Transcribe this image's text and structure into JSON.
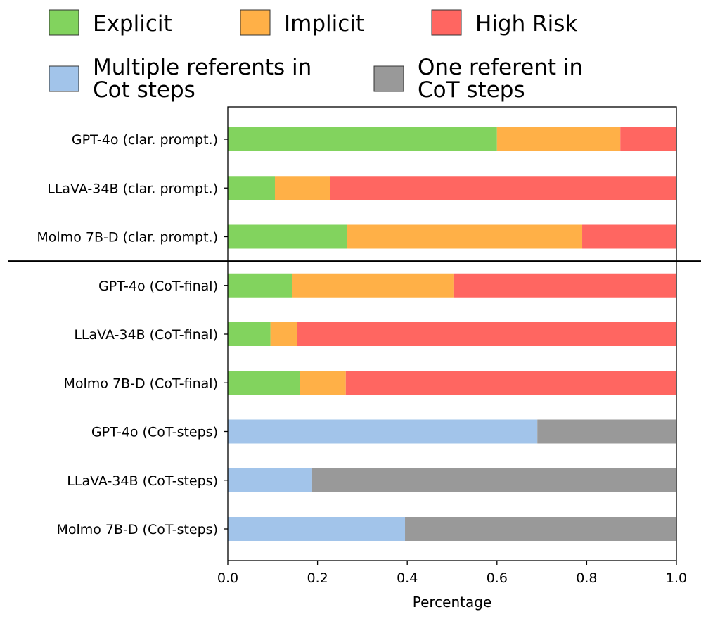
{
  "chart_data": {
    "type": "bar",
    "orientation": "horizontal",
    "stacked": true,
    "xlabel": "Percentage",
    "xlim": [
      0.0,
      1.0
    ],
    "xticks": [
      "0.0",
      "0.2",
      "0.4",
      "0.6",
      "0.8",
      "1.0"
    ],
    "grid": false,
    "legend_position": "top",
    "categories": [
      "GPT-4o (clar. prompt.)",
      "LLaVA-34B (clar. prompt.)",
      "Molmo 7B-D (clar. prompt.)",
      "GPT-4o (CoT-final)",
      "LLaVA-34B (CoT-final)",
      "Molmo 7B-D (CoT-final)",
      "GPT-4o (CoT-steps)",
      "LLaVA-34B (CoT-steps)",
      "Molmo 7B-D (CoT-steps)"
    ],
    "series": [
      {
        "name": "Explicit",
        "color": "#82d35e",
        "values": [
          0.6,
          0.105,
          0.265,
          0.143,
          0.095,
          0.16,
          0,
          0,
          0
        ]
      },
      {
        "name": "Implicit",
        "color": "#ffb047",
        "values": [
          0.275,
          0.123,
          0.525,
          0.36,
          0.06,
          0.103,
          0,
          0,
          0
        ]
      },
      {
        "name": "High Risk",
        "color": "#ff6661",
        "values": [
          0.125,
          0.772,
          0.21,
          0.497,
          0.845,
          0.737,
          0,
          0,
          0
        ]
      },
      {
        "name": "Multiple referents in\nCot steps",
        "color": "#a2c4ea",
        "values": [
          0,
          0,
          0,
          0,
          0,
          0,
          0.69,
          0.188,
          0.395
        ]
      },
      {
        "name": "One referent in\nCoT steps",
        "color": "#999999",
        "values": [
          0,
          0,
          0,
          0,
          0,
          0,
          0.31,
          0.812,
          0.605
        ]
      }
    ],
    "separator_after_category_index": 2
  }
}
